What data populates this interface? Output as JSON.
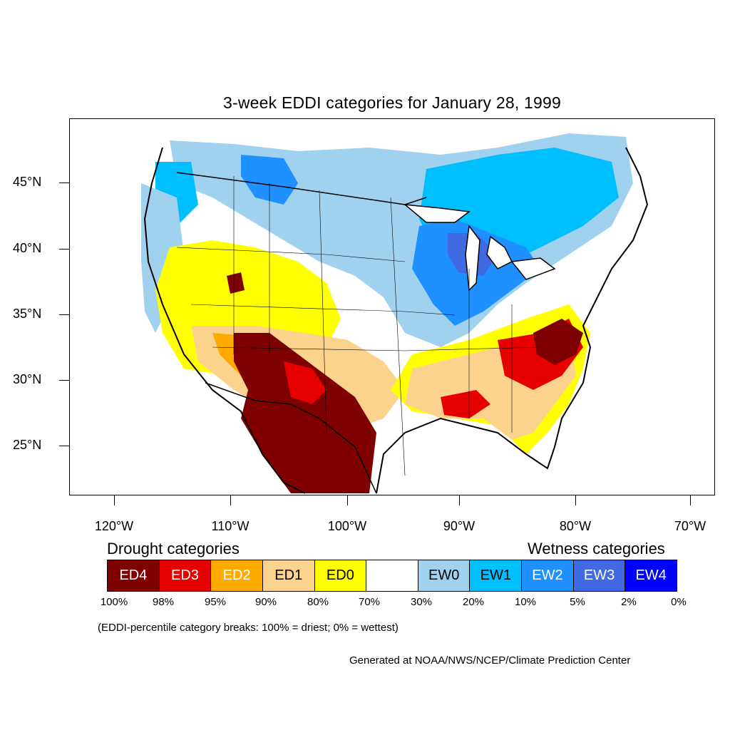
{
  "title": "3-week EDDI categories for January 28, 1999",
  "map": {
    "lat_labels": [
      "45°N",
      "40°N",
      "35°N",
      "30°N",
      "25°N"
    ],
    "lon_labels": [
      "120°W",
      "110°W",
      "100°W",
      "90°W",
      "80°W",
      "70°W"
    ],
    "colors": {
      "ED4": "#7f0000",
      "ED3": "#e60000",
      "ED2": "#ffaa00",
      "ED1": "#fcd38d",
      "ED0": "#ffff00",
      "EW0": "#a0d2f0",
      "EW1": "#00bfff",
      "EW2": "#1e90ff",
      "EW3": "#4169e1",
      "EW4": "#0000ff"
    }
  },
  "legend": {
    "drought_heading": "Drought categories",
    "wetness_heading": "Wetness categories",
    "categories": [
      {
        "label": "ED4",
        "color": "#7f0000",
        "text_color": "#ffffff"
      },
      {
        "label": "ED3",
        "color": "#e60000",
        "text_color": "#ffffff"
      },
      {
        "label": "ED2",
        "color": "#ffaa00",
        "text_color": "#ffffff"
      },
      {
        "label": "ED1",
        "color": "#fcd38d",
        "text_color": "#000000"
      },
      {
        "label": "ED0",
        "color": "#ffff00",
        "text_color": "#000000"
      },
      {
        "label": "",
        "color": "#ffffff",
        "text_color": "#000000"
      },
      {
        "label": "EW0",
        "color": "#a0d2f0",
        "text_color": "#000000"
      },
      {
        "label": "EW1",
        "color": "#00bfff",
        "text_color": "#000000"
      },
      {
        "label": "EW2",
        "color": "#1e90ff",
        "text_color": "#ffffff"
      },
      {
        "label": "EW3",
        "color": "#4169e1",
        "text_color": "#ffffff"
      },
      {
        "label": "EW4",
        "color": "#0000ff",
        "text_color": "#ffffff"
      }
    ],
    "percent_breaks": [
      "100%",
      "98%",
      "95%",
      "90%",
      "80%",
      "70%",
      "30%",
      "20%",
      "10%",
      "5%",
      "2%",
      "0%"
    ],
    "note": "(EDDI-percentile category breaks: 100% = driest; 0% = wettest)"
  },
  "credit": "Generated at NOAA/NWS/NCEP/Climate Prediction Center"
}
